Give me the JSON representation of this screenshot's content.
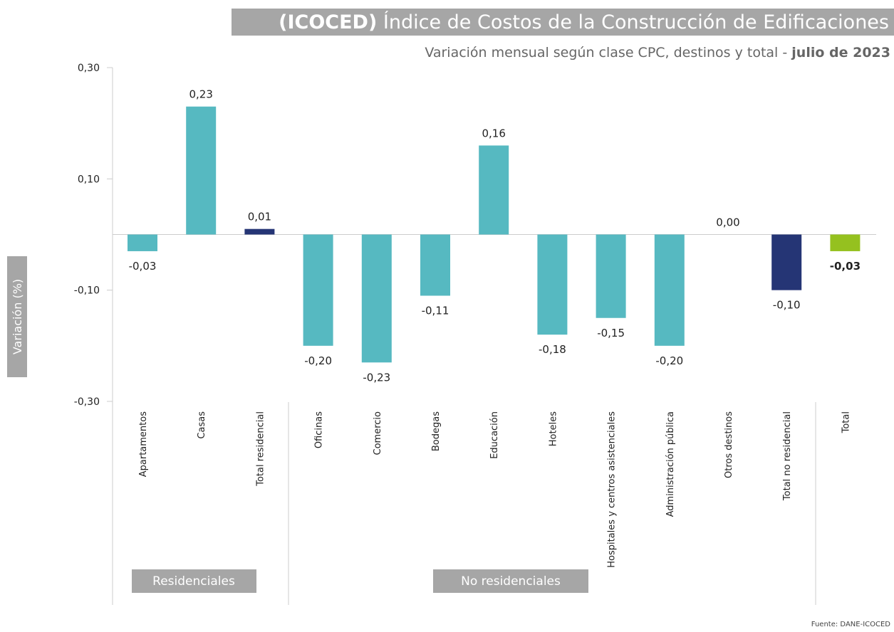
{
  "chart_data": {
    "type": "bar",
    "title_bold": "(ICOCED)",
    "title": "Índice de Costos de la Construcción de Edificaciones",
    "subtitle": "Variación mensual según clase CPC, destinos y total -",
    "subtitle_bold": "julio de 2023",
    "ylabel": "Variación (%)",
    "source": "Fuente: DANE-ICOCED",
    "groups": [
      "Residenciales",
      "No residenciales"
    ],
    "categories": [
      "Apartamentos",
      "Casas",
      "Total residencial",
      "Oficinas",
      "Comercio",
      "Bodegas",
      "Educación",
      "Hoteles",
      "Hospitales y centros asistenciales",
      "Administración pública",
      "Otros destinos",
      "Total no residencial",
      "Total"
    ],
    "values": [
      -0.03,
      0.23,
      0.01,
      -0.2,
      -0.23,
      -0.11,
      0.16,
      -0.18,
      -0.15,
      -0.2,
      0.0,
      -0.1,
      -0.03
    ],
    "value_labels": [
      "-0,03",
      "0,23",
      "0,01",
      "-0,20",
      "-0,23",
      "-0,11",
      "0,16",
      "-0,18",
      "-0,15",
      "-0,20",
      "0,00",
      "-0,10",
      "-0,03"
    ],
    "colors": [
      "#56b9c1",
      "#56b9c1",
      "#253575",
      "#56b9c1",
      "#56b9c1",
      "#56b9c1",
      "#56b9c1",
      "#56b9c1",
      "#56b9c1",
      "#56b9c1",
      "#56b9c1",
      "#253575",
      "#95c11f"
    ],
    "ylim": [
      -0.3,
      0.3
    ],
    "yticks": [
      {
        "value": -0.3,
        "label": "-0,30"
      },
      {
        "value": -0.1,
        "label": "-0,10"
      },
      {
        "value": 0.1,
        "label": "0,10"
      },
      {
        "value": 0.3,
        "label": "0,30"
      }
    ]
  }
}
